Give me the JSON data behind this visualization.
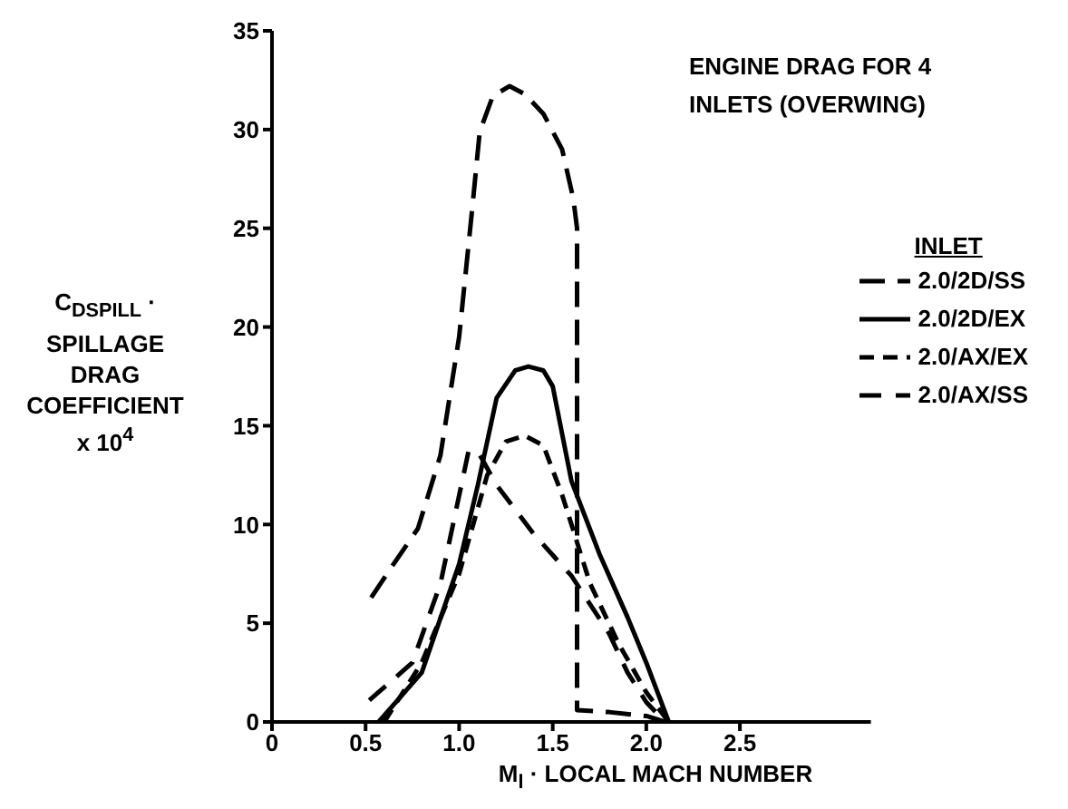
{
  "chart_data": {
    "type": "line",
    "title": "ENGINE DRAG FOR 4 INLETS (OVERWING)",
    "xlabel": "M$_{l}$ · LOCAL MACH NUMBER",
    "ylabel": "C$_{D}$$_{SPILL}$ · SPILLAGE DRAG COEFFICIENT x 10$^{4}$",
    "legend_title": "INLET",
    "legend": "right",
    "grid": false,
    "marker": "none",
    "xlim": [
      0,
      3.2
    ],
    "xticks": [
      0,
      0.5,
      {
        "value": 1,
        "label": "1.0"
      },
      1.5,
      {
        "value": 2,
        "label": "2.0"
      },
      2.5
    ],
    "ylim": [
      0,
      35
    ],
    "yticks": [
      0,
      5,
      10,
      15,
      20,
      25,
      30,
      35
    ],
    "series": [
      {
        "name": "2.0/2D/SS",
        "color": "#000000",
        "line_style": "dashed",
        "x": [
          0.53,
          0.65,
          0.78,
          0.9,
          1.0,
          1.07,
          1.11,
          1.18,
          1.27,
          1.35,
          1.45,
          1.55,
          1.61,
          1.63,
          1.63,
          1.8,
          2.0,
          2.1
        ],
        "values": [
          6.3,
          8,
          9.8,
          13.5,
          19.5,
          26,
          29.9,
          31.7,
          32.2,
          31.8,
          30.8,
          29,
          26.5,
          25,
          0.6,
          0.5,
          0.3,
          0
        ]
      },
      {
        "name": "2.0/2D/EX",
        "color": "#000000",
        "line_style": "solid",
        "x": [
          0.57,
          0.8,
          1.0,
          1.1,
          1.2,
          1.3,
          1.37,
          1.45,
          1.5,
          1.6,
          1.75,
          1.9,
          2.0,
          2.12
        ],
        "values": [
          0,
          2.5,
          8,
          12,
          16.4,
          17.8,
          18,
          17.8,
          17,
          12.2,
          8.5,
          5.3,
          3,
          0
        ]
      },
      {
        "name": "2.0/AX/EX",
        "color": "#000000",
        "line_style": "dashed",
        "x": [
          0.6,
          0.8,
          1.0,
          1.15,
          1.25,
          1.35,
          1.45,
          1.55,
          1.7,
          1.85,
          2.0,
          2.12
        ],
        "values": [
          0,
          3,
          7.5,
          12.5,
          14.2,
          14.5,
          14,
          11.5,
          7,
          4,
          1.5,
          0
        ]
      },
      {
        "name": "2.0/AX/SS",
        "color": "#000000",
        "line_style": "dashed",
        "x": [
          0.52,
          0.75,
          0.9,
          1.05,
          1.1,
          1.2,
          1.4,
          1.6,
          1.8,
          1.9,
          2.0,
          2.1
        ],
        "values": [
          1.1,
          3,
          7,
          13.7,
          13.7,
          12,
          9.5,
          7.4,
          4.5,
          2.5,
          1,
          0
        ]
      }
    ]
  }
}
